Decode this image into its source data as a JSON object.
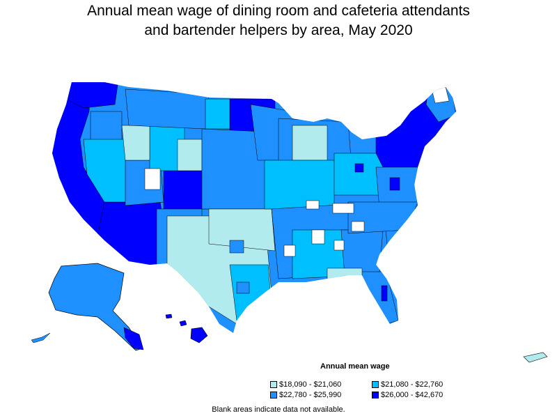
{
  "title": {
    "line1": "Annual mean wage of dining room and cafeteria attendants",
    "line2": "and bartender helpers by area, May 2020"
  },
  "legend": {
    "title": "Annual mean wage",
    "items": [
      {
        "label": "$18,090 - $21,060",
        "color": "#b2ebee"
      },
      {
        "label": "$21,080 - $22,760",
        "color": "#00bfff"
      },
      {
        "label": "$22,780 - $25,990",
        "color": "#1e90ff"
      },
      {
        "label": "$26,000 - $42,670",
        "color": "#0000ff"
      }
    ]
  },
  "footnote": "Blank areas indicate data not available."
}
